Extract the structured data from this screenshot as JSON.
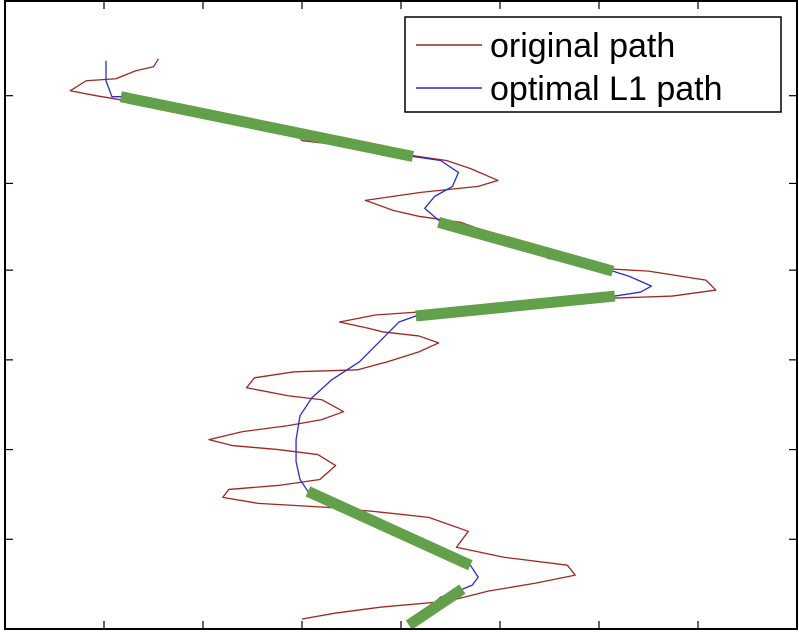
{
  "chart_data": {
    "type": "line",
    "title": "",
    "xlabel": "",
    "ylabel": "",
    "xlim": [
      0,
      800
    ],
    "ylim": [
      0,
      630
    ],
    "y_inverted": true,
    "grid": false,
    "legend_position": "top-right",
    "x_ticks": [
      100,
      200,
      300,
      400,
      500,
      600,
      700
    ],
    "y_ticks": [
      95,
      183,
      270,
      360,
      450,
      540
    ],
    "series": [
      {
        "name": "original path",
        "color": "#a0281e",
        "points": [
          [
            155,
            58
          ],
          [
            150,
            66
          ],
          [
            132,
            70
          ],
          [
            112,
            78
          ],
          [
            82,
            80
          ],
          [
            66,
            90
          ],
          [
            92,
            95
          ],
          [
            122,
            100
          ],
          [
            162,
            108
          ],
          [
            205,
            114
          ],
          [
            250,
            122
          ],
          [
            290,
            130
          ],
          [
            300,
            140
          ],
          [
            350,
            146
          ],
          [
            380,
            150
          ],
          [
            418,
            156
          ],
          [
            446,
            160
          ],
          [
            470,
            168
          ],
          [
            498,
            180
          ],
          [
            478,
            186
          ],
          [
            420,
            192
          ],
          [
            364,
            200
          ],
          [
            392,
            210
          ],
          [
            418,
            216
          ],
          [
            460,
            222
          ],
          [
            500,
            236
          ],
          [
            528,
            246
          ],
          [
            548,
            258
          ],
          [
            598,
            268
          ],
          [
            650,
            271
          ],
          [
            708,
            280
          ],
          [
            718,
            290
          ],
          [
            674,
            296
          ],
          [
            616,
            298
          ],
          [
            512,
            306
          ],
          [
            432,
            311
          ],
          [
            374,
            315
          ],
          [
            338,
            322
          ],
          [
            366,
            328
          ],
          [
            382,
            332
          ],
          [
            418,
            336
          ],
          [
            438,
            343
          ],
          [
            418,
            352
          ],
          [
            386,
            362
          ],
          [
            356,
            370
          ],
          [
            292,
            372
          ],
          [
            252,
            378
          ],
          [
            244,
            388
          ],
          [
            286,
            396
          ],
          [
            320,
            400
          ],
          [
            342,
            412
          ],
          [
            320,
            420
          ],
          [
            286,
            426
          ],
          [
            240,
            432
          ],
          [
            206,
            440
          ],
          [
            230,
            446
          ],
          [
            276,
            450
          ],
          [
            316,
            455
          ],
          [
            334,
            466
          ],
          [
            318,
            480
          ],
          [
            276,
            486
          ],
          [
            226,
            490
          ],
          [
            220,
            498
          ],
          [
            256,
            504
          ],
          [
            326,
            508
          ],
          [
            372,
            512
          ],
          [
            428,
            518
          ],
          [
            468,
            532
          ],
          [
            456,
            548
          ],
          [
            504,
            558
          ],
          [
            568,
            566
          ],
          [
            576,
            576
          ],
          [
            536,
            584
          ],
          [
            488,
            592
          ],
          [
            448,
            602
          ],
          [
            380,
            608
          ],
          [
            334,
            614
          ],
          [
            300,
            620
          ]
        ]
      },
      {
        "name": "optimal L1 path",
        "color": "#2a2ad8",
        "points": [
          [
            102,
            60
          ],
          [
            102,
            80
          ],
          [
            108,
            96
          ],
          [
            117,
            96
          ],
          [
            412,
            156
          ],
          [
            440,
            160
          ],
          [
            458,
            172
          ],
          [
            452,
            186
          ],
          [
            434,
            196
          ],
          [
            424,
            208
          ],
          [
            438,
            220
          ],
          [
            614,
            271
          ],
          [
            630,
            276
          ],
          [
            653,
            286
          ],
          [
            642,
            292
          ],
          [
            616,
            296
          ],
          [
            415,
            316
          ],
          [
            398,
            322
          ],
          [
            380,
            340
          ],
          [
            358,
            362
          ],
          [
            330,
            380
          ],
          [
            310,
            398
          ],
          [
            298,
            416
          ],
          [
            294,
            440
          ],
          [
            294,
            462
          ],
          [
            298,
            480
          ],
          [
            306,
            492
          ],
          [
            470,
            566
          ],
          [
            478,
            578
          ],
          [
            472,
            586
          ],
          [
            462,
            590
          ],
          [
            440,
            598
          ],
          [
            408,
            626
          ]
        ]
      },
      {
        "name": "",
        "color": "#62a049",
        "segments": [
          [
            [
              117,
              96
            ],
            [
              412,
              156
            ]
          ],
          [
            [
              438,
              222
            ],
            [
              614,
              271
            ]
          ],
          [
            [
              415,
              316
            ],
            [
              616,
              296
            ]
          ],
          [
            [
              306,
              492
            ],
            [
              470,
              566
            ]
          ],
          [
            [
              462,
              590
            ],
            [
              408,
              626
            ]
          ]
        ]
      }
    ]
  },
  "legend": {
    "entries": [
      {
        "label": "original path",
        "color": "#a0281e"
      },
      {
        "label": "optimal L1 path",
        "color": "#2a2ad8"
      }
    ]
  }
}
